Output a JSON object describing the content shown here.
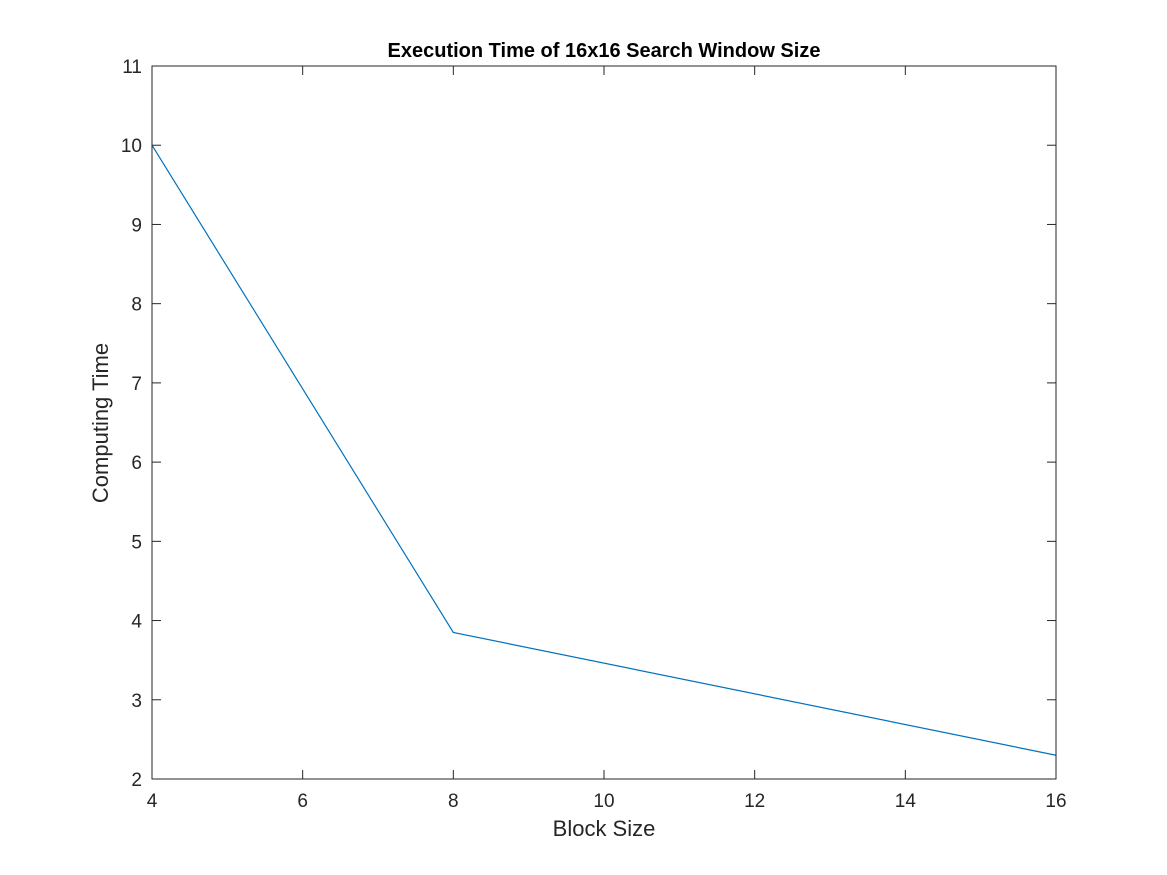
{
  "chart_data": {
    "type": "line",
    "title": "Execution Time of 16x16 Search Window Size",
    "xlabel": "Block Size",
    "ylabel": "Computing Time",
    "xlim": [
      4,
      16
    ],
    "ylim": [
      2,
      11
    ],
    "xticks": [
      4,
      6,
      8,
      10,
      12,
      14,
      16
    ],
    "yticks": [
      2,
      3,
      4,
      5,
      6,
      7,
      8,
      9,
      10,
      11
    ],
    "grid": false,
    "legend": "none",
    "series": [
      {
        "color": "#0072BD",
        "x": [
          4,
          8,
          16
        ],
        "y": [
          10.0,
          3.85,
          2.3
        ]
      }
    ]
  }
}
